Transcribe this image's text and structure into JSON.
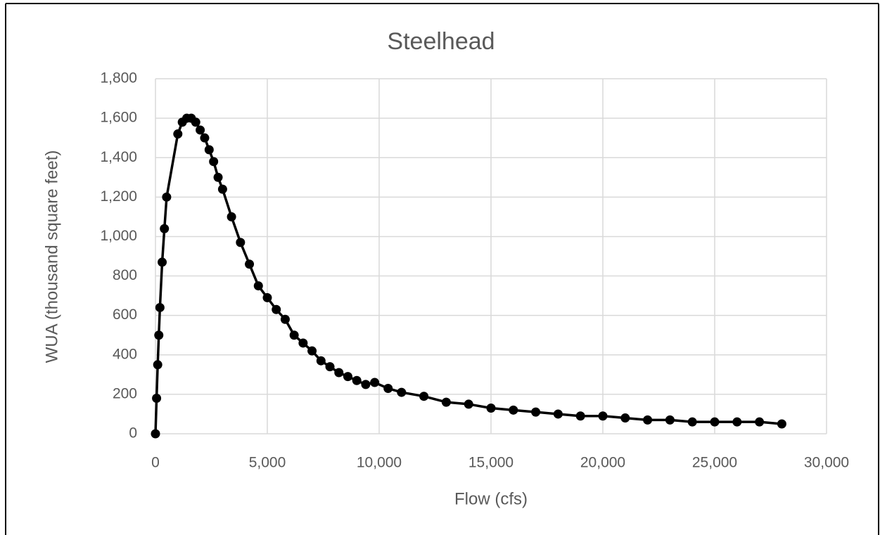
{
  "chart_data": {
    "type": "line",
    "title": "Steelhead",
    "x_label": "Flow (cfs)",
    "y_label": "WUA (thousand square feet)",
    "x": [
      0,
      50,
      100,
      150,
      200,
      300,
      400,
      500,
      1000,
      1200,
      1400,
      1600,
      1800,
      2000,
      2200,
      2400,
      2600,
      2800,
      3000,
      3400,
      3800,
      4200,
      4600,
      5000,
      5400,
      5800,
      6200,
      6600,
      7000,
      7400,
      7800,
      8200,
      8600,
      9000,
      9400,
      9800,
      10400,
      11000,
      12000,
      13000,
      14000,
      15000,
      16000,
      17000,
      18000,
      19000,
      20000,
      21000,
      22000,
      23000,
      24000,
      25000,
      26000,
      27000,
      28000
    ],
    "values": [
      0,
      180,
      350,
      500,
      640,
      870,
      1040,
      1200,
      1520,
      1580,
      1600,
      1600,
      1580,
      1540,
      1500,
      1440,
      1380,
      1300,
      1240,
      1100,
      970,
      860,
      750,
      690,
      630,
      580,
      500,
      460,
      420,
      370,
      340,
      310,
      290,
      270,
      250,
      260,
      230,
      210,
      190,
      160,
      150,
      130,
      120,
      110,
      100,
      90,
      90,
      80,
      70,
      70,
      60,
      60,
      60,
      60,
      50
    ],
    "color": "#000000",
    "xlim": [
      0,
      30000
    ],
    "xticks": [
      0,
      {
        "value": 5000,
        "label": "5,000"
      },
      {
        "value": 10000,
        "label": "10,000"
      },
      {
        "value": 15000,
        "label": "15,000"
      },
      {
        "value": 20000,
        "label": "20,000"
      },
      {
        "value": 25000,
        "label": "25,000"
      },
      {
        "value": 30000,
        "label": "30,000"
      }
    ],
    "ylim": [
      0,
      1800
    ],
    "yticks": [
      0,
      200,
      400,
      600,
      800,
      {
        "value": 1000,
        "label": "1,000"
      },
      {
        "value": 1200,
        "label": "1,200"
      },
      {
        "value": 1400,
        "label": "1,400"
      },
      {
        "value": 1600,
        "label": "1,600"
      },
      {
        "value": 1800,
        "label": "1,800"
      }
    ],
    "grid": true
  }
}
